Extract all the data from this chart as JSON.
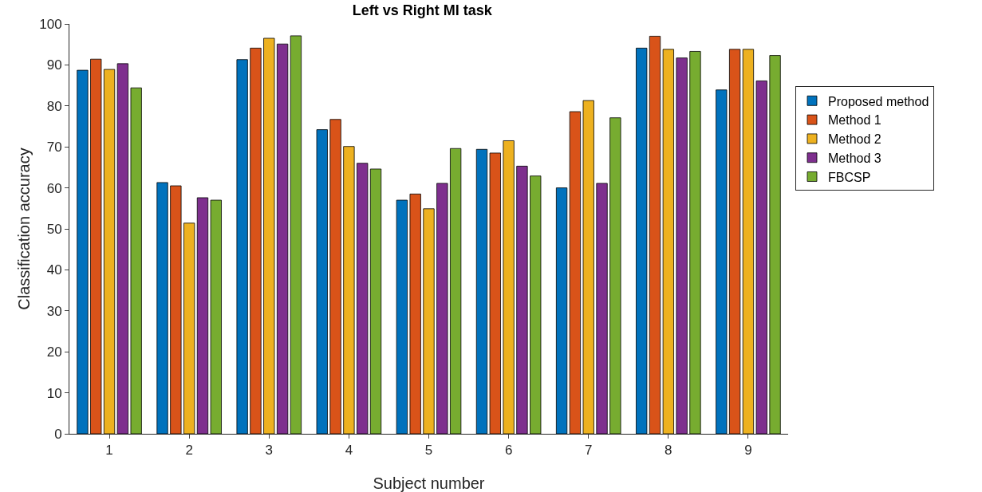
{
  "chart_data": {
    "type": "bar",
    "title": "Left vs Right MI task",
    "xlabel": "Subject number",
    "ylabel": "Classification accuracy",
    "categories": [
      "1",
      "2",
      "3",
      "4",
      "5",
      "6",
      "7",
      "8",
      "9"
    ],
    "series": [
      {
        "name": "Proposed method",
        "color": "#0072bd",
        "values": [
          88.7,
          61.3,
          91.3,
          74.2,
          57.0,
          69.4,
          60.0,
          94.1,
          83.9
        ]
      },
      {
        "name": "Method 1",
        "color": "#d95319",
        "values": [
          91.4,
          60.5,
          94.1,
          76.7,
          58.5,
          68.5,
          78.6,
          97.0,
          93.8
        ]
      },
      {
        "name": "Method 2",
        "color": "#edb120",
        "values": [
          88.9,
          51.4,
          96.5,
          70.1,
          54.9,
          71.5,
          81.3,
          93.8,
          93.8
        ]
      },
      {
        "name": "Method 3",
        "color": "#7e2f8e",
        "values": [
          90.3,
          57.6,
          95.1,
          66.0,
          61.1,
          65.3,
          61.1,
          91.7,
          86.1
        ]
      },
      {
        "name": "FBCSP",
        "color": "#77ac30",
        "values": [
          84.4,
          57.0,
          97.1,
          64.6,
          69.6,
          62.9,
          77.1,
          93.3,
          92.3
        ]
      }
    ],
    "ylim": [
      0,
      100
    ],
    "yticks": [
      0,
      10,
      20,
      30,
      40,
      50,
      60,
      70,
      80,
      90,
      100
    ],
    "grid": false,
    "legend": "right"
  }
}
